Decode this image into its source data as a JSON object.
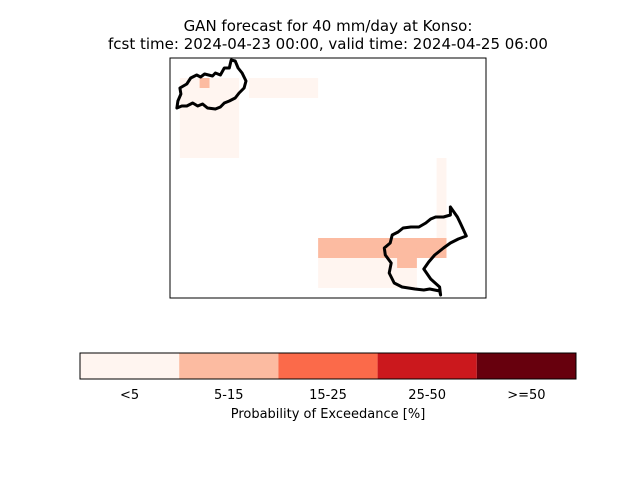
{
  "chart_data": {
    "type": "heatmap",
    "title_line1": "GAN forecast for 40 mm/day at Konso:",
    "title_line2": "fcst time: 2024-04-23 00:00, valid time: 2024-04-25 06:00",
    "map": {
      "grid": {
        "cols": 32,
        "rows": 24
      },
      "cells": [
        {
          "x0": 8,
          "x1": 15,
          "y0": 2,
          "y1": 4,
          "category": "<5"
        },
        {
          "x0": 1,
          "x1": 7,
          "y0": 2,
          "y1": 10,
          "category": "<5"
        },
        {
          "x0": 3,
          "x1": 4,
          "y0": 2,
          "y1": 3,
          "category": "5-15"
        },
        {
          "x0": 27,
          "x1": 28,
          "y0": 10,
          "y1": 18,
          "category": "<5"
        },
        {
          "x0": 15,
          "x1": 28,
          "y0": 18,
          "y1": 20,
          "category": "5-15"
        },
        {
          "x0": 15,
          "x1": 25,
          "y0": 20,
          "y1": 23,
          "category": "<5"
        },
        {
          "x0": 23,
          "x1": 25,
          "y0": 19,
          "y1": 21,
          "category": "5-15"
        }
      ],
      "outlines": [
        [
          [
            0.7,
            5
          ],
          [
            0.8,
            4.3
          ],
          [
            1.1,
            3.6
          ],
          [
            1.0,
            3.0
          ],
          [
            1.7,
            2.6
          ],
          [
            2.1,
            2.0
          ],
          [
            2.7,
            1.7
          ],
          [
            3.1,
            1.9
          ],
          [
            3.5,
            1.6
          ],
          [
            4.3,
            1.8
          ],
          [
            4.6,
            1.5
          ],
          [
            5.1,
            1.7
          ],
          [
            5.5,
            1.0
          ],
          [
            6.0,
            1.0
          ],
          [
            6.2,
            0.2
          ],
          [
            6.6,
            0.3
          ],
          [
            6.9,
            1.0
          ],
          [
            7.3,
            1.5
          ],
          [
            7.7,
            2.3
          ],
          [
            7.5,
            3.0
          ],
          [
            7.0,
            3.5
          ],
          [
            6.6,
            4.0
          ],
          [
            6.0,
            4.3
          ],
          [
            5.5,
            4.5
          ],
          [
            5.1,
            4.9
          ],
          [
            4.6,
            5.1
          ],
          [
            3.8,
            5.0
          ],
          [
            3.3,
            4.6
          ],
          [
            2.8,
            4.8
          ],
          [
            2.3,
            4.5
          ],
          [
            1.7,
            4.8
          ],
          [
            1.2,
            4.8
          ],
          [
            0.7,
            5
          ]
        ],
        [
          [
            28.4,
            14.9
          ],
          [
            28.4,
            15.7
          ],
          [
            27.7,
            15.9
          ],
          [
            26.9,
            15.9
          ],
          [
            26.4,
            16.1
          ],
          [
            25.9,
            16.5
          ],
          [
            25.2,
            16.9
          ],
          [
            24.4,
            16.9
          ],
          [
            23.6,
            17.0
          ],
          [
            23.1,
            17.4
          ],
          [
            22.5,
            17.7
          ],
          [
            22.3,
            18.5
          ],
          [
            21.7,
            19.0
          ],
          [
            21.8,
            19.7
          ],
          [
            22.4,
            20.5
          ],
          [
            22.2,
            21.5
          ],
          [
            22.7,
            22.5
          ],
          [
            23.5,
            22.9
          ],
          [
            24.8,
            23.1
          ],
          [
            25.7,
            23.2
          ],
          [
            26.3,
            23.1
          ],
          [
            27.3,
            23.3
          ],
          [
            27.4,
            23.7
          ],
          [
            27.3,
            22.9
          ],
          [
            26.4,
            22.1
          ],
          [
            25.7,
            21.1
          ],
          [
            26.2,
            20.4
          ],
          [
            26.8,
            19.7
          ],
          [
            27.7,
            19.0
          ],
          [
            28.4,
            18.5
          ],
          [
            29.2,
            18.1
          ],
          [
            30.0,
            17.8
          ],
          [
            29.4,
            16.5
          ],
          [
            29.1,
            15.9
          ],
          [
            28.4,
            14.9
          ]
        ]
      ]
    },
    "colorbar": {
      "label": "Probability of Exceedance [%]",
      "categories": [
        "<5",
        "5-15",
        "15-25",
        "25-50",
        ">=50"
      ],
      "colors": [
        "#fff5f0",
        "#fcbba1",
        "#fb6a4a",
        "#cb181d",
        "#67000d"
      ]
    }
  }
}
